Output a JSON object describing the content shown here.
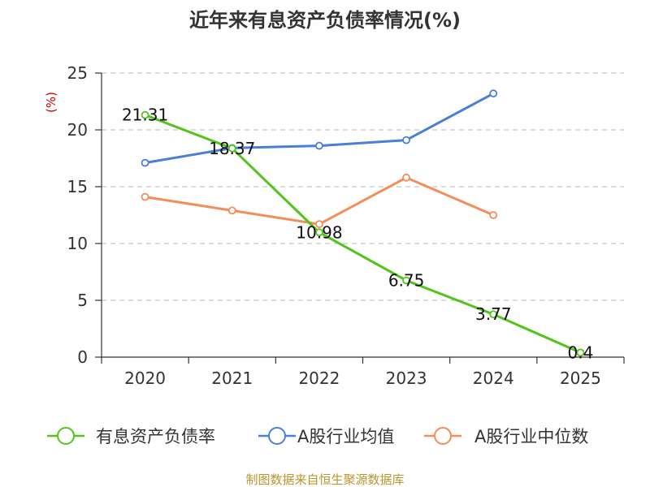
{
  "chart_data": {
    "type": "line",
    "title": "近年来有息资产负债率情况(%)",
    "ylabel": "(%)",
    "categories": [
      "2020",
      "2021",
      "2022",
      "2023",
      "2024",
      "2025"
    ],
    "ylim": [
      0,
      25
    ],
    "yticks": [
      "0",
      "5",
      "10",
      "15",
      "20",
      "25"
    ],
    "grid": true,
    "legend_position": "bottom",
    "series": [
      {
        "name": "有息资产负债率",
        "color": "#52c41a",
        "values": [
          21.31,
          18.37,
          10.98,
          6.75,
          3.77,
          0.4
        ],
        "labels": [
          "21.31",
          "18.37",
          "10.98",
          "6.75",
          "3.77",
          "0.4"
        ]
      },
      {
        "name": "A股行业均值",
        "color": "#4a7fd8",
        "values": [
          17.1,
          18.4,
          18.6,
          19.1,
          23.2,
          null
        ]
      },
      {
        "name": "A股行业中位数",
        "color": "#f58d5a",
        "values": [
          14.1,
          12.9,
          11.7,
          15.8,
          12.5,
          null
        ]
      }
    ],
    "ylabel_color": "#cc0000",
    "source": "制图数据来自恒生聚源数据库",
    "source_color": "#b8962e"
  }
}
